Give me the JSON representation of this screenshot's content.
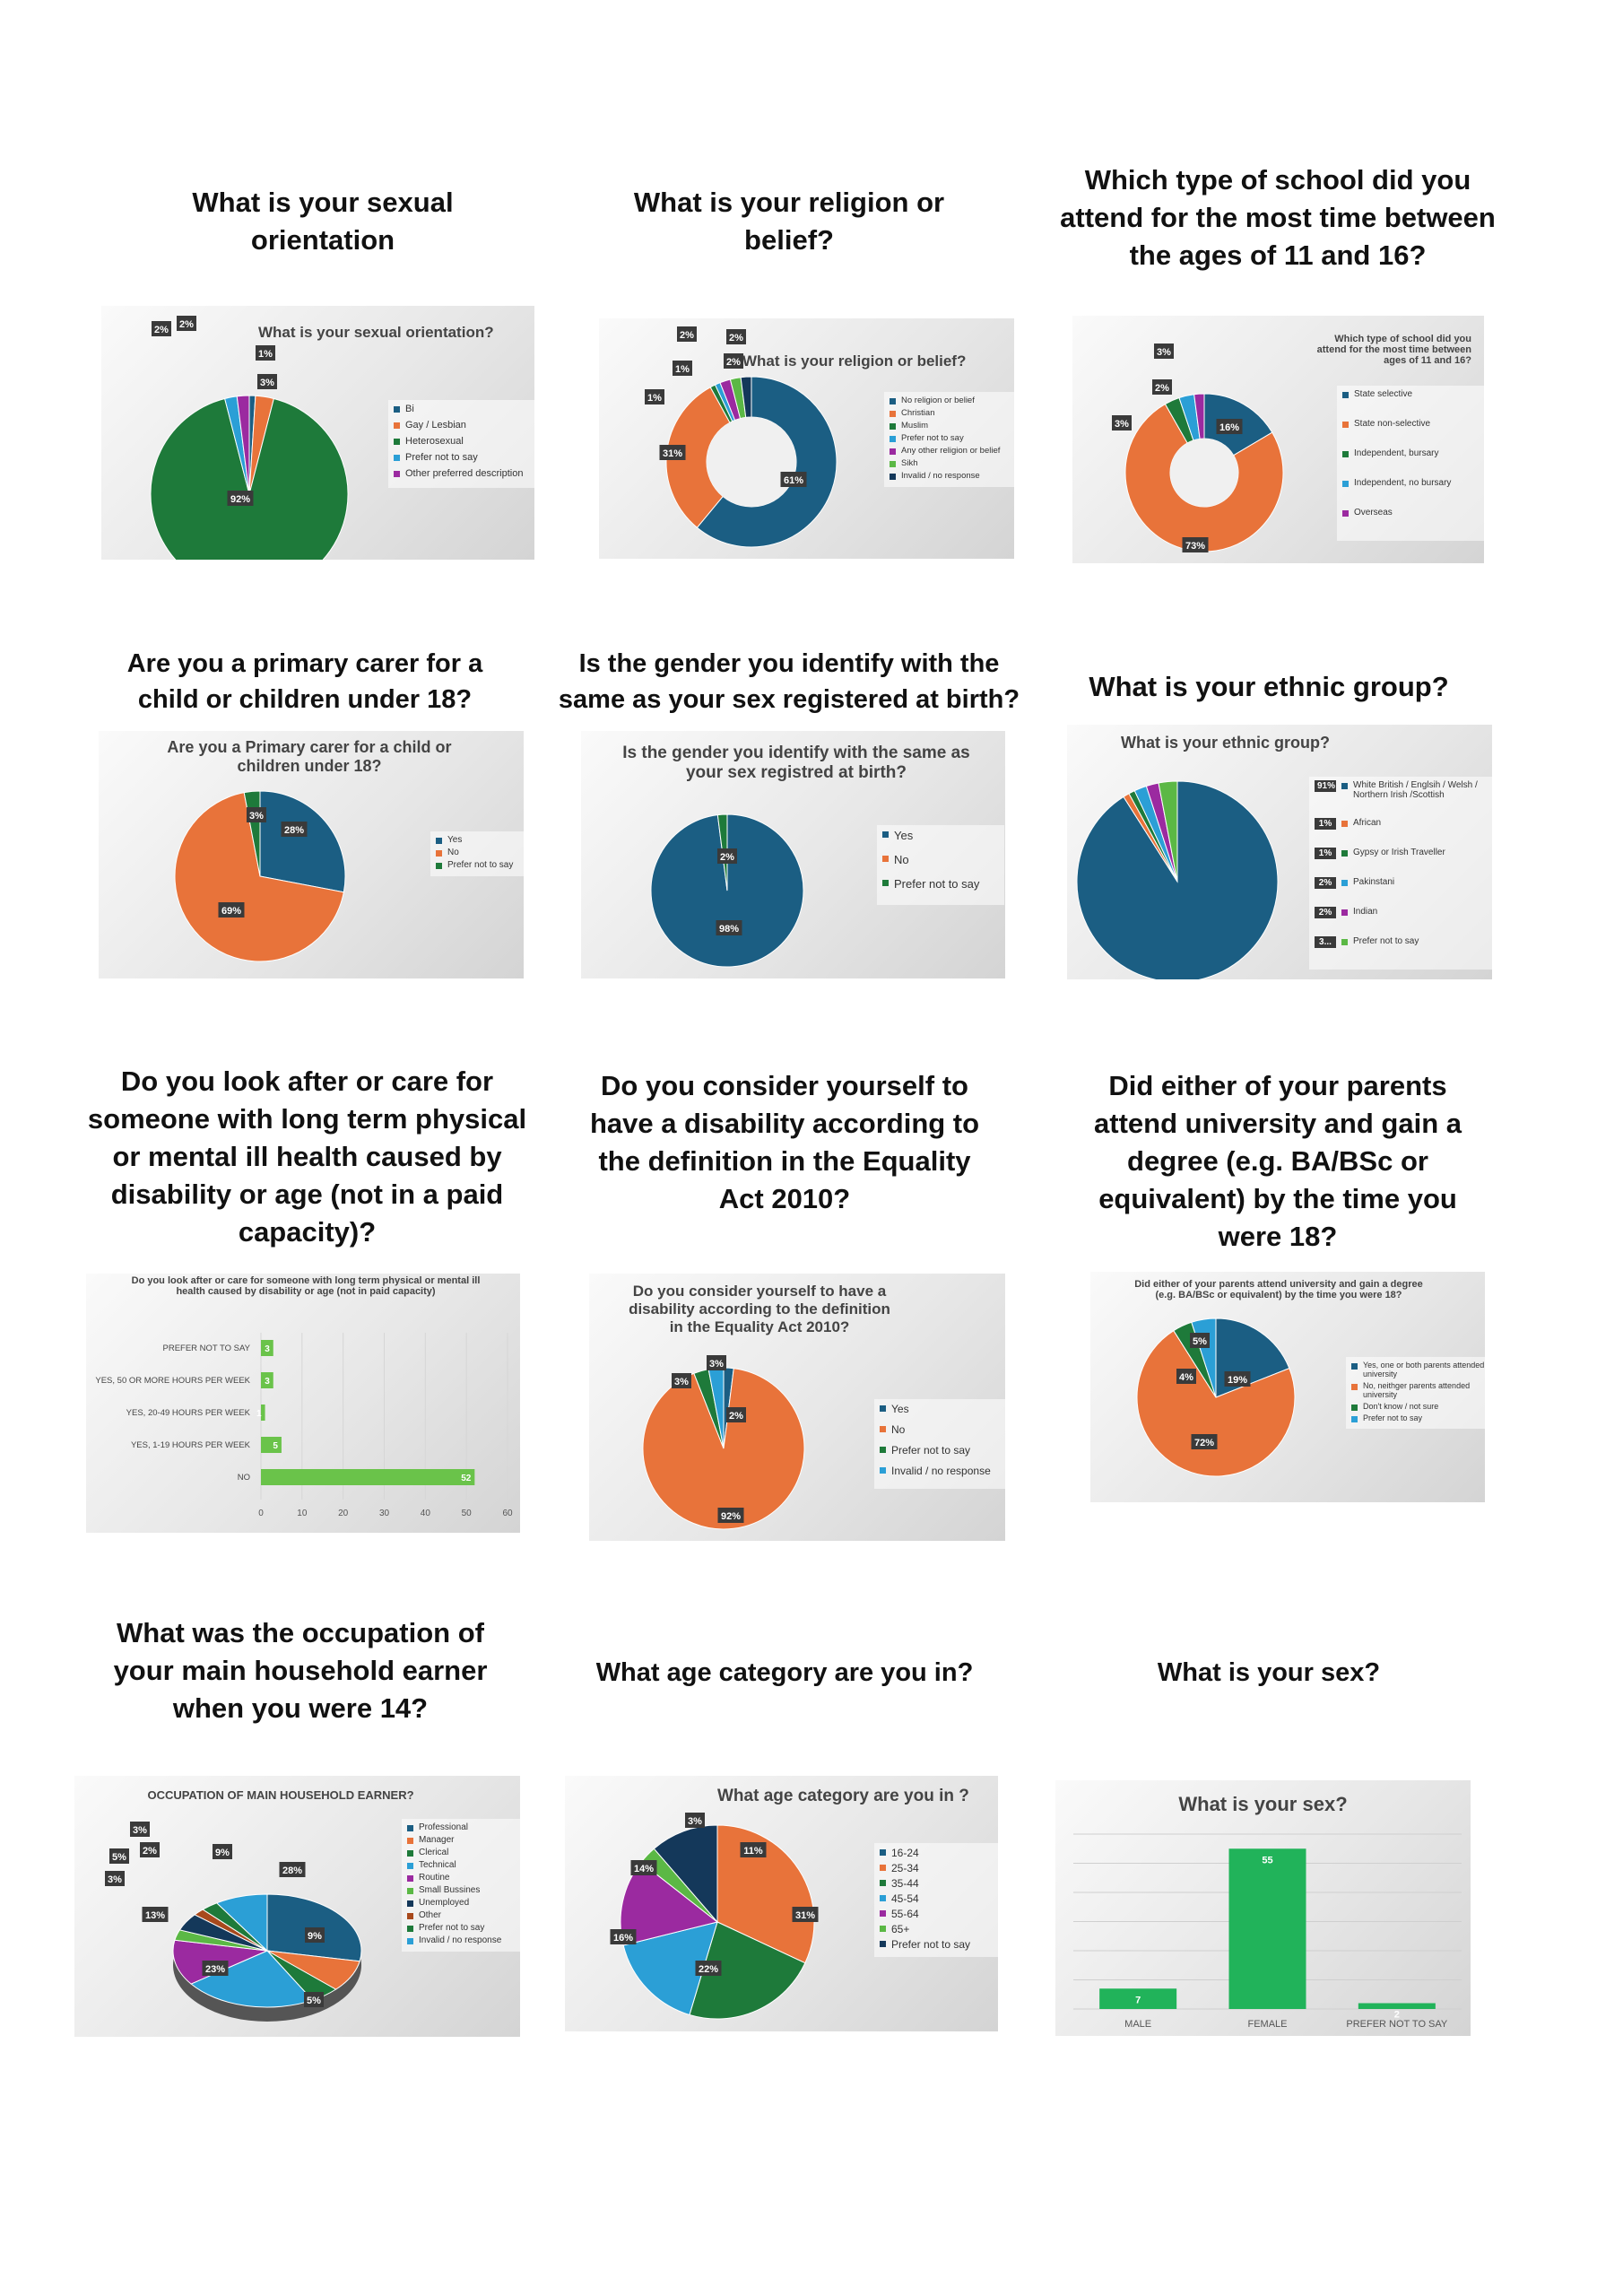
{
  "questions": [
    {
      "id": "q1",
      "text": "What is your sexual orientation"
    },
    {
      "id": "q2",
      "text": "What is your religion or belief?"
    },
    {
      "id": "q3",
      "text": "Which type of school did you attend for the most time between the ages of  11 and 16?"
    },
    {
      "id": "q4",
      "text": "Are you a primary carer for a child or children under 18?"
    },
    {
      "id": "q5",
      "text": "Is the gender you identify with the same as your sex registered at birth?"
    },
    {
      "id": "q6",
      "text": "What is your ethnic group?"
    },
    {
      "id": "q7",
      "text": "Do you look after or care for someone with long term physical or mental ill health caused by disability or age (not in a paid capacity)?"
    },
    {
      "id": "q8",
      "text": "Do you consider yourself to have a disability according to the definition in the Equality Act 2010?"
    },
    {
      "id": "q9",
      "text": "Did either of your parents attend university and gain a degree  (e.g. BA/BSc or equivalent) by the  time you were 18?"
    },
    {
      "id": "q10",
      "text": "What was the occupation of your main household earner when you were 14?"
    },
    {
      "id": "q11",
      "text": "What age category are you in?"
    },
    {
      "id": "q12",
      "text": "What is your sex?"
    }
  ],
  "colors": {
    "dark_blue": "#1b5e83",
    "orange": "#e8733a",
    "green": "#1e7a3a",
    "light_blue": "#2b9fd6",
    "purple": "#9b2aa0",
    "lime": "#5bb845",
    "navy": "#14385a",
    "rust": "#a8491c",
    "bright_green": "#21b35a"
  },
  "chart_data": [
    {
      "id": "c1",
      "type": "pie",
      "title": "What is your sexual orientation?",
      "categories": [
        "Bi",
        "Gay / Lesbian",
        "Heterosexual",
        "Prefer not to say",
        "Other preferred description"
      ],
      "values": [
        1,
        3,
        92,
        2,
        2
      ],
      "labels": [
        "1%",
        "3%",
        "92%",
        "2%",
        "2%"
      ]
    },
    {
      "id": "c2",
      "type": "donut",
      "title": "What is your religion or belief?",
      "categories": [
        "No religion or belief",
        "Christian",
        "Muslim",
        "Prefer not to say",
        "Any other religion or belief",
        "Sikh",
        "Invalid / no response"
      ],
      "values": [
        61,
        31,
        1,
        1,
        2,
        2,
        2
      ],
      "labels": [
        "61%",
        "31%",
        "1%",
        "1%",
        "2%",
        "2%",
        "2%"
      ]
    },
    {
      "id": "c3",
      "type": "donut",
      "title": "Which type of school did you attend for the most time between ages of 11 and 16?",
      "categories": [
        "State selective",
        "State non-selective",
        "Independent, bursary",
        "Independent, no bursary",
        "Overseas"
      ],
      "values": [
        16,
        73,
        3,
        3,
        2
      ],
      "labels": [
        "16%",
        "73%",
        "3%",
        "3%",
        "2%"
      ]
    },
    {
      "id": "c4",
      "type": "pie",
      "title": "Are you a Primary carer for a child or children under 18?",
      "categories": [
        "Yes",
        "No",
        "Prefer not to say"
      ],
      "values": [
        28,
        69,
        3
      ],
      "labels": [
        "28%",
        "69%",
        "3%"
      ]
    },
    {
      "id": "c5",
      "type": "pie",
      "title": "Is the gender you identify with the same as your sex registred at birth?",
      "categories": [
        "Yes",
        "No",
        "Prefer not to say"
      ],
      "values": [
        98,
        0,
        2
      ],
      "labels": [
        "98%",
        "",
        "2%"
      ]
    },
    {
      "id": "c6",
      "type": "pie",
      "title": "What is your ethnic group?",
      "categories": [
        "White British / Englsih / Welsh / Northern Irish /Scottish",
        "African",
        "Gypsy or Irish Traveller",
        "Pakinstani",
        "Indian",
        "Prefer not to say"
      ],
      "values": [
        91,
        1,
        1,
        2,
        2,
        3
      ],
      "labels": [
        "91%",
        "1%",
        "1%",
        "2%",
        "2%",
        "3..."
      ]
    },
    {
      "id": "c7",
      "type": "bar",
      "title": "Do you look after or care for someone with long term physical or mental ill health caused by disability or age (not in paid capacity)",
      "categories": [
        "PREFER NOT TO SAY",
        "YES, 50 OR MORE HOURS PER WEEK",
        "YES, 20-49 HOURS PER WEEK",
        "YES, 1-19 HOURS PER WEEK",
        "NO"
      ],
      "values": [
        3,
        3,
        1,
        5,
        52
      ],
      "labels": [
        "3",
        "3",
        "1",
        "5",
        "52"
      ],
      "xticks": [
        "0",
        "10",
        "20",
        "30",
        "40",
        "50",
        "60"
      ],
      "xlim": [
        0,
        60
      ]
    },
    {
      "id": "c8",
      "type": "pie",
      "title": "Do you consider yourself to have a disability according to the definition in the Equality Act 2010?",
      "categories": [
        "Yes",
        "No",
        "Prefer not to say",
        "Invalid / no response"
      ],
      "values": [
        2,
        92,
        3,
        3
      ],
      "labels": [
        "2%",
        "92%",
        "3%",
        "3%"
      ]
    },
    {
      "id": "c9",
      "type": "pie",
      "title": "Did either of your parents attend university and gain a degree (e.g. BA/BSc or equivalent) by the time you were 18?",
      "categories": [
        "Yes, one or both parents attended university",
        "No, neithger parents attended university",
        "Don't know / not sure",
        "Prefer not to say"
      ],
      "values": [
        19,
        72,
        4,
        5
      ],
      "labels": [
        "19%",
        "72%",
        "4%",
        "5%"
      ]
    },
    {
      "id": "c10",
      "type": "pie",
      "title": "OCCUPATION OF MAIN HOUSEHOLD EARNER?",
      "categories": [
        "Professional",
        "Manager",
        "Clerical",
        "Technical",
        "Routine",
        "Small Bussines",
        "Unemployed",
        "Other",
        "Prefer not to say",
        "Invalid / no response"
      ],
      "values": [
        28,
        9,
        5,
        23,
        13,
        3,
        5,
        2,
        3,
        9
      ],
      "labels": [
        "28%",
        "9%",
        "5%",
        "23%",
        "13%",
        "3%",
        "5%",
        "2%",
        "3%",
        "9%"
      ]
    },
    {
      "id": "c11",
      "type": "pie",
      "title": "What age category are you in ?",
      "categories": [
        "16-24",
        "25-34",
        "35-44",
        "45-54",
        "55-64",
        "65+",
        "Prefer not to say"
      ],
      "values": [
        0,
        31,
        22,
        16,
        14,
        3,
        11
      ],
      "labels": [
        "",
        "31%",
        "22%",
        "16%",
        "14%",
        "3%",
        "11%"
      ]
    },
    {
      "id": "c12",
      "type": "bar",
      "title": "What is your sex?",
      "categories": [
        "MALE",
        "FEMALE",
        "PREFER NOT TO SAY"
      ],
      "values": [
        7,
        55,
        2
      ],
      "labels": [
        "7",
        "55",
        "2"
      ]
    }
  ]
}
